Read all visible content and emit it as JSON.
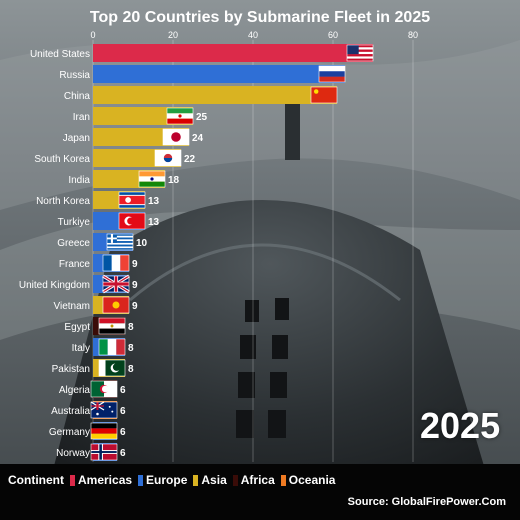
{
  "chart_data": {
    "type": "bar",
    "orientation": "horizontal",
    "title": "Top 20 Countries by Submarine Fleet in 2025",
    "year_label": "2025",
    "source": "Source: GlobalFirePower.Com",
    "x_ticks": [
      "0",
      "20",
      "40",
      "60",
      "80"
    ],
    "xlim": [
      0,
      80
    ],
    "categories": [
      "United States",
      "Russia",
      "China",
      "Iran",
      "Japan",
      "South Korea",
      "India",
      "North Korea",
      "Turkiye",
      "Greece",
      "France",
      "United Kingdom",
      "Vietnam",
      "Egypt",
      "Italy",
      "Pakistan",
      "Algeria",
      "Australia",
      "Germany",
      "Norway"
    ],
    "values": [
      70,
      63,
      61,
      25,
      24,
      22,
      18,
      13,
      13,
      10,
      9,
      9,
      9,
      8,
      8,
      8,
      6,
      6,
      6,
      6
    ],
    "value_labels": [
      null,
      null,
      null,
      "25",
      "24",
      "22",
      "18",
      "13",
      "13",
      "10",
      "9",
      "9",
      "9",
      "8",
      "8",
      "8",
      "6",
      "6",
      "6",
      "6"
    ],
    "continents": [
      "Americas",
      "Europe",
      "Asia",
      "Asia",
      "Asia",
      "Asia",
      "Asia",
      "Asia",
      "Europe",
      "Europe",
      "Europe",
      "Europe",
      "Asia",
      "Africa",
      "Europe",
      "Asia",
      "Africa",
      "Oceania",
      "Europe",
      "Europe"
    ],
    "flags": [
      "us-flag",
      "ru-flag",
      "cn-flag",
      "ir-flag",
      "jp-flag",
      "kr-flag",
      "in-flag",
      "kp-flag",
      "tr-flag",
      "gr-flag",
      "fr-flag",
      "gb-flag",
      "vn-flag",
      "eg-flag",
      "it-flag",
      "pk-flag",
      "dz-flag",
      "au-flag",
      "de-flag",
      "no-flag"
    ],
    "legend": {
      "title": "Continent",
      "items": [
        {
          "label": "Americas",
          "color": "#dc2a4a"
        },
        {
          "label": "Europe",
          "color": "#2f6fd6"
        },
        {
          "label": "Asia",
          "color": "#d9b322"
        },
        {
          "label": "Africa",
          "color": "#3a0c08"
        },
        {
          "label": "Oceania",
          "color": "#ef7a22"
        }
      ]
    },
    "colors": {
      "Americas": "#dc2a4a",
      "Europe": "#2f6fd6",
      "Asia": "#d9b322",
      "Africa": "#3a0c08",
      "Oceania": "#ef7a22"
    },
    "grid": true
  }
}
